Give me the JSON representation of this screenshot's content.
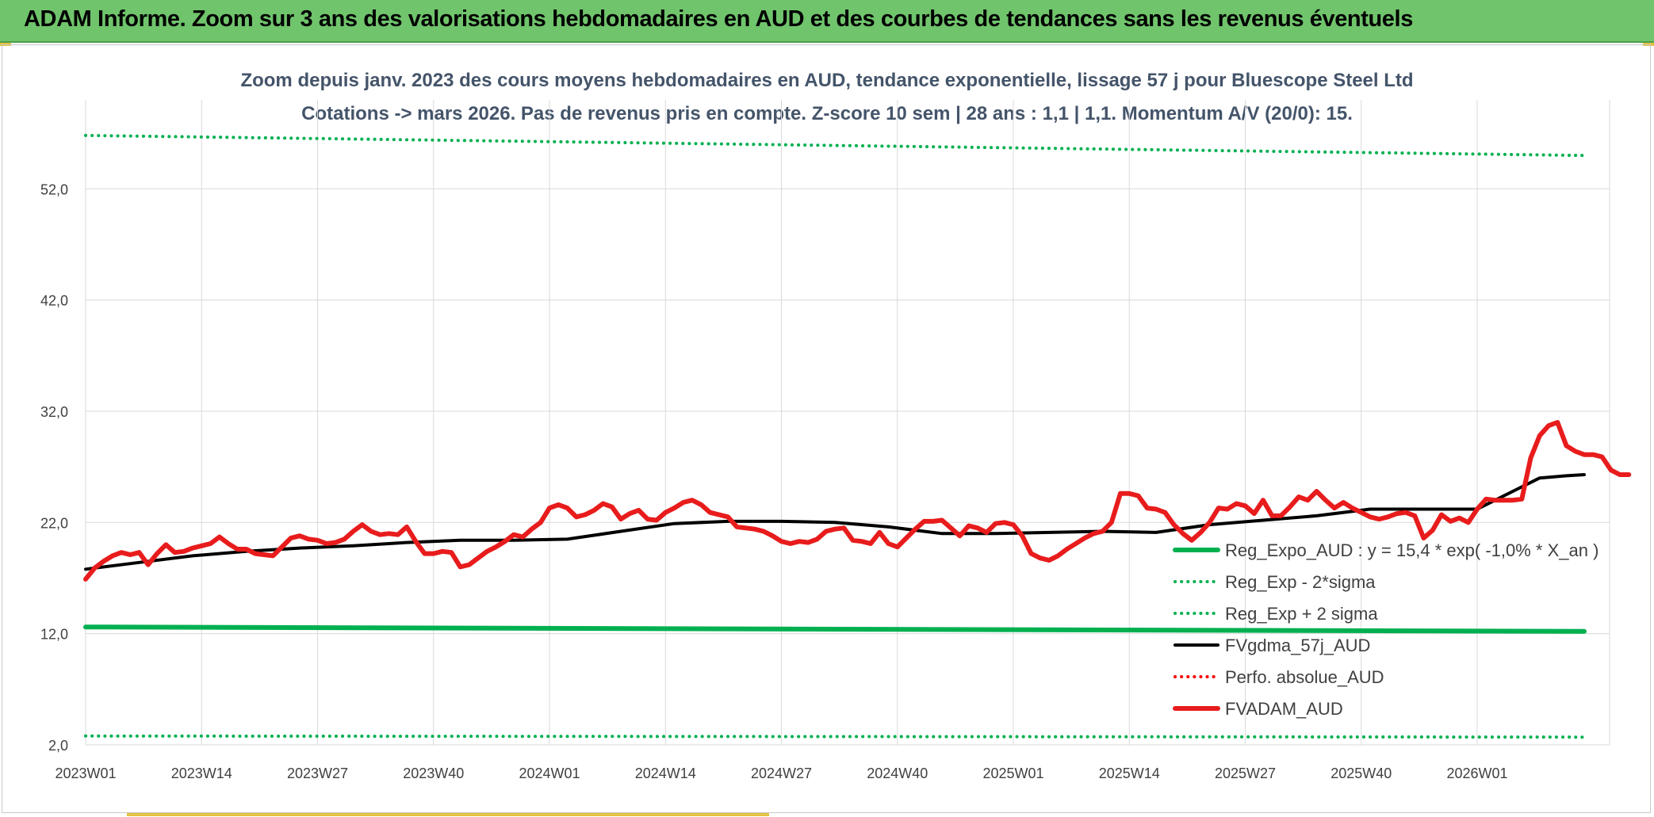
{
  "banner": {
    "title": "ADAM Informe. Zoom sur 3 ans des valorisations hebdomadaires en AUD et des courbes de tendances sans les revenus éventuels"
  },
  "colors": {
    "banner_bg": "#70c46c",
    "trend_green": "#00b050",
    "fvadam_red": "#e81c1c",
    "fvgdma_black": "#000000",
    "perfo_red": "#ff0000"
  },
  "chart_data": {
    "type": "line",
    "title_lines": [
      "Zoom depuis janv. 2023 des cours moyens hebdomadaires en AUD, tendance exponentielle, lissage 57 j pour Bluescope Steel Ltd",
      "Cotations -> mars 2026. Pas de revenus pris en compte. Z-score 10 sem | 28 ans : 1,1 | 1,1. Momentum A/V (20/0): 15."
    ],
    "x_ticks": [
      "2023W01",
      "2023W14",
      "2023W27",
      "2023W40",
      "2024W01",
      "2024W14",
      "2024W27",
      "2024W40",
      "2025W01",
      "2025W14",
      "2025W27",
      "2025W40",
      "2026W01"
    ],
    "y_ticks": [
      "2,0",
      "12,0",
      "22,0",
      "32,0",
      "42,0",
      "52,0"
    ],
    "ylim": [
      2,
      60
    ],
    "x_range_weeks": [
      0,
      168
    ],
    "grid": true,
    "legend_position": "bottom-right",
    "series": [
      {
        "name": "Reg_Expo_AUD : y = 15,4 * exp( -1,0% *  X_an )",
        "style": "solid-thick",
        "color": "#00b050",
        "points": [
          [
            0,
            12.6
          ],
          [
            168,
            12.2
          ]
        ]
      },
      {
        "name": "Reg_Exp - 2*sigma",
        "style": "dotted",
        "color": "#00b050",
        "points": [
          [
            0,
            2.8
          ],
          [
            168,
            2.7
          ]
        ]
      },
      {
        "name": "Reg_Exp + 2 sigma",
        "style": "dotted",
        "color": "#00b050",
        "points": [
          [
            0,
            56.8
          ],
          [
            168,
            55.0
          ]
        ]
      },
      {
        "name": "FVgdma_57j_AUD",
        "style": "solid",
        "color": "#000000",
        "points": [
          [
            0,
            17.8
          ],
          [
            6,
            18.4
          ],
          [
            12,
            19.0
          ],
          [
            18,
            19.4
          ],
          [
            24,
            19.7
          ],
          [
            30,
            19.9
          ],
          [
            36,
            20.2
          ],
          [
            42,
            20.4
          ],
          [
            48,
            20.4
          ],
          [
            54,
            20.5
          ],
          [
            60,
            21.2
          ],
          [
            66,
            21.9
          ],
          [
            72,
            22.1
          ],
          [
            78,
            22.1
          ],
          [
            84,
            22.0
          ],
          [
            90,
            21.6
          ],
          [
            96,
            21.0
          ],
          [
            102,
            21.0
          ],
          [
            108,
            21.1
          ],
          [
            114,
            21.2
          ],
          [
            120,
            21.1
          ],
          [
            126,
            21.8
          ],
          [
            132,
            22.2
          ],
          [
            138,
            22.6
          ],
          [
            144,
            23.2
          ],
          [
            150,
            23.2
          ],
          [
            156,
            23.2
          ],
          [
            160,
            24.8
          ],
          [
            163,
            26.0
          ],
          [
            166,
            26.2
          ],
          [
            168,
            26.3
          ]
        ]
      },
      {
        "name": "Perfo. absolue_AUD",
        "style": "dotted",
        "color": "#ff0000",
        "points": []
      },
      {
        "name": "FVADAM_AUD",
        "style": "solid-thick",
        "color": "#e81c1c",
        "points": [
          [
            0,
            16.9
          ],
          [
            1,
            17.9
          ],
          [
            2,
            18.5
          ],
          [
            3,
            19.0
          ],
          [
            4,
            19.3
          ],
          [
            5,
            19.1
          ],
          [
            6,
            19.3
          ],
          [
            7,
            18.2
          ],
          [
            8,
            19.2
          ],
          [
            9,
            20.0
          ],
          [
            10,
            19.3
          ],
          [
            11,
            19.4
          ],
          [
            12,
            19.7
          ],
          [
            13,
            19.9
          ],
          [
            14,
            20.1
          ],
          [
            15,
            20.7
          ],
          [
            16,
            20.1
          ],
          [
            17,
            19.6
          ],
          [
            18,
            19.6
          ],
          [
            19,
            19.2
          ],
          [
            20,
            19.1
          ],
          [
            21,
            19.0
          ],
          [
            22,
            19.8
          ],
          [
            23,
            20.6
          ],
          [
            24,
            20.8
          ],
          [
            25,
            20.5
          ],
          [
            26,
            20.4
          ],
          [
            27,
            20.1
          ],
          [
            28,
            20.2
          ],
          [
            29,
            20.5
          ],
          [
            30,
            21.2
          ],
          [
            31,
            21.8
          ],
          [
            32,
            21.2
          ],
          [
            33,
            20.9
          ],
          [
            34,
            21.0
          ],
          [
            35,
            20.9
          ],
          [
            36,
            21.6
          ],
          [
            37,
            20.3
          ],
          [
            38,
            19.2
          ],
          [
            39,
            19.2
          ],
          [
            40,
            19.4
          ],
          [
            41,
            19.3
          ],
          [
            42,
            18.0
          ],
          [
            43,
            18.2
          ],
          [
            44,
            18.8
          ],
          [
            45,
            19.4
          ],
          [
            46,
            19.8
          ],
          [
            47,
            20.3
          ],
          [
            48,
            20.9
          ],
          [
            49,
            20.7
          ],
          [
            50,
            21.4
          ],
          [
            51,
            22.0
          ],
          [
            52,
            23.3
          ],
          [
            53,
            23.6
          ],
          [
            54,
            23.3
          ],
          [
            55,
            22.5
          ],
          [
            56,
            22.7
          ],
          [
            57,
            23.1
          ],
          [
            58,
            23.7
          ],
          [
            59,
            23.4
          ],
          [
            60,
            22.3
          ],
          [
            61,
            22.8
          ],
          [
            62,
            23.1
          ],
          [
            63,
            22.3
          ],
          [
            64,
            22.2
          ],
          [
            65,
            22.9
          ],
          [
            66,
            23.3
          ],
          [
            67,
            23.8
          ],
          [
            68,
            24.0
          ],
          [
            69,
            23.6
          ],
          [
            70,
            22.9
          ],
          [
            71,
            22.7
          ],
          [
            72,
            22.5
          ],
          [
            73,
            21.6
          ],
          [
            74,
            21.5
          ],
          [
            75,
            21.4
          ],
          [
            76,
            21.2
          ],
          [
            77,
            20.8
          ],
          [
            78,
            20.3
          ],
          [
            79,
            20.1
          ],
          [
            80,
            20.3
          ],
          [
            81,
            20.2
          ],
          [
            82,
            20.5
          ],
          [
            83,
            21.2
          ],
          [
            84,
            21.4
          ],
          [
            85,
            21.5
          ],
          [
            86,
            20.4
          ],
          [
            87,
            20.3
          ],
          [
            88,
            20.1
          ],
          [
            89,
            21.1
          ],
          [
            90,
            20.1
          ],
          [
            91,
            19.8
          ],
          [
            92,
            20.6
          ],
          [
            93,
            21.4
          ],
          [
            94,
            22.1
          ],
          [
            95,
            22.1
          ],
          [
            96,
            22.2
          ],
          [
            97,
            21.5
          ],
          [
            98,
            20.8
          ],
          [
            99,
            21.7
          ],
          [
            100,
            21.5
          ],
          [
            101,
            21.1
          ],
          [
            102,
            21.9
          ],
          [
            103,
            22.0
          ],
          [
            104,
            21.8
          ],
          [
            105,
            20.8
          ],
          [
            106,
            19.2
          ],
          [
            107,
            18.8
          ],
          [
            108,
            18.6
          ],
          [
            109,
            19.0
          ],
          [
            110,
            19.6
          ],
          [
            111,
            20.1
          ],
          [
            112,
            20.6
          ],
          [
            113,
            21.0
          ],
          [
            114,
            21.2
          ],
          [
            115,
            22.0
          ],
          [
            116,
            24.6
          ],
          [
            117,
            24.6
          ],
          [
            118,
            24.4
          ],
          [
            119,
            23.3
          ],
          [
            120,
            23.2
          ],
          [
            121,
            22.9
          ],
          [
            122,
            21.8
          ],
          [
            123,
            21.0
          ],
          [
            124,
            20.4
          ],
          [
            125,
            21.1
          ],
          [
            126,
            22.0
          ],
          [
            127,
            23.3
          ],
          [
            128,
            23.2
          ],
          [
            129,
            23.7
          ],
          [
            130,
            23.5
          ],
          [
            131,
            22.8
          ],
          [
            132,
            24.0
          ],
          [
            133,
            22.6
          ],
          [
            134,
            22.6
          ],
          [
            135,
            23.4
          ],
          [
            136,
            24.3
          ],
          [
            137,
            24.0
          ],
          [
            138,
            24.8
          ],
          [
            139,
            24.0
          ],
          [
            140,
            23.3
          ],
          [
            141,
            23.8
          ],
          [
            142,
            23.3
          ],
          [
            143,
            22.9
          ],
          [
            144,
            22.5
          ],
          [
            145,
            22.3
          ],
          [
            146,
            22.5
          ],
          [
            147,
            22.8
          ],
          [
            148,
            22.9
          ],
          [
            149,
            22.6
          ],
          [
            150,
            20.6
          ],
          [
            151,
            21.3
          ],
          [
            152,
            22.7
          ],
          [
            153,
            22.1
          ],
          [
            154,
            22.4
          ],
          [
            155,
            22.0
          ],
          [
            156,
            23.2
          ],
          [
            157,
            24.1
          ],
          [
            158,
            24.0
          ],
          [
            159,
            24.0
          ],
          [
            160,
            24.0
          ],
          [
            161,
            24.1
          ],
          [
            162,
            27.8
          ],
          [
            163,
            29.8
          ],
          [
            164,
            30.7
          ],
          [
            165,
            31.0
          ],
          [
            166,
            28.9
          ],
          [
            167,
            28.4
          ],
          [
            168,
            28.1
          ],
          [
            169,
            28.1
          ],
          [
            170,
            27.9
          ],
          [
            171,
            26.7
          ],
          [
            172,
            26.3
          ],
          [
            173,
            26.3
          ]
        ]
      }
    ]
  }
}
